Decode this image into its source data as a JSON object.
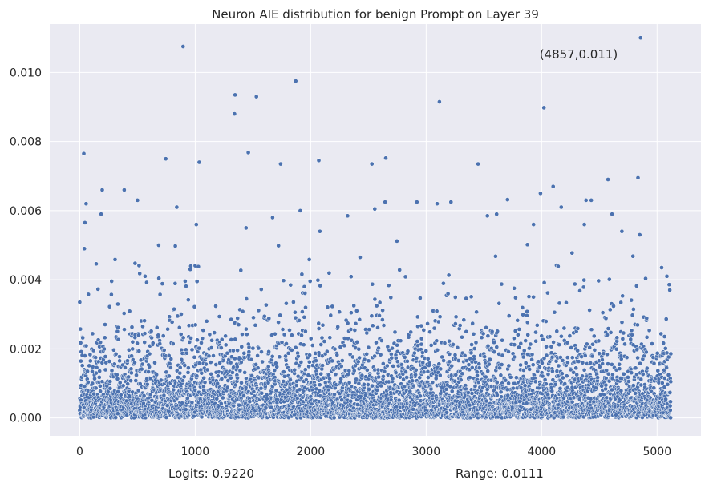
{
  "chart_data": {
    "type": "scatter",
    "title": "Neuron AIE distribution for benign Prompt on Layer 39",
    "xlabel": "",
    "ylabel": "",
    "xlim": [
      -260,
      5380
    ],
    "ylim": [
      -0.00052,
      0.0114
    ],
    "xticks": [
      0,
      1000,
      2000,
      3000,
      4000,
      5000
    ],
    "xtick_labels": [
      "0",
      "1000",
      "2000",
      "3000",
      "4000",
      "5000"
    ],
    "yticks": [
      0.0,
      0.002,
      0.004,
      0.006,
      0.008,
      0.01
    ],
    "ytick_labels": [
      "0.000",
      "0.002",
      "0.004",
      "0.006",
      "0.008",
      "0.010"
    ],
    "grid": true,
    "background": "#eaeaf2",
    "point_color": "#4c72b0",
    "n_points": 5120,
    "annotation": "(4857,0.011)",
    "annotation_point": [
      4857,
      0.011
    ],
    "points": [
      [
        35,
        0.00765
      ],
      [
        55,
        0.0062
      ],
      [
        45,
        0.00565
      ],
      [
        40,
        0.0049
      ],
      [
        185,
        0.0059
      ],
      [
        195,
        0.0066
      ],
      [
        385,
        0.0066
      ],
      [
        500,
        0.0063
      ],
      [
        745,
        0.0075
      ],
      [
        840,
        0.0061
      ],
      [
        895,
        0.01075
      ],
      [
        1035,
        0.0074
      ],
      [
        1010,
        0.0056
      ],
      [
        1340,
        0.0088
      ],
      [
        1345,
        0.00935
      ],
      [
        1440,
        0.0055
      ],
      [
        1460,
        0.00768
      ],
      [
        1530,
        0.0093
      ],
      [
        1670,
        0.0058
      ],
      [
        1740,
        0.00735
      ],
      [
        1870,
        0.00975
      ],
      [
        1910,
        0.006
      ],
      [
        2070,
        0.00745
      ],
      [
        2080,
        0.0054
      ],
      [
        2320,
        0.00585
      ],
      [
        2530,
        0.00735
      ],
      [
        2555,
        0.00605
      ],
      [
        2650,
        0.00752
      ],
      [
        2645,
        0.00625
      ],
      [
        2920,
        0.00625
      ],
      [
        3095,
        0.0062
      ],
      [
        3115,
        0.00915
      ],
      [
        3215,
        0.00625
      ],
      [
        3450,
        0.00735
      ],
      [
        3530,
        0.00585
      ],
      [
        3610,
        0.0059
      ],
      [
        3705,
        0.00632
      ],
      [
        3990,
        0.0065
      ],
      [
        4020,
        0.00898
      ],
      [
        4100,
        0.0067
      ],
      [
        4170,
        0.0061
      ],
      [
        4370,
        0.0056
      ],
      [
        4385,
        0.0063
      ],
      [
        4430,
        0.0063
      ],
      [
        4575,
        0.0069
      ],
      [
        4610,
        0.0059
      ],
      [
        4695,
        0.0054
      ],
      [
        4835,
        0.00695
      ],
      [
        4857,
        0.011
      ],
      [
        4850,
        0.0053
      ],
      [
        5040,
        0.00435
      ],
      [
        5085,
        0.0041
      ],
      [
        5110,
        0.0037
      ],
      [
        0,
        0.00335
      ],
      [
        3930,
        0.0056
      ]
    ]
  },
  "footer": {
    "logits": "Logits: 0.9220",
    "range": "Range: 0.0111"
  }
}
